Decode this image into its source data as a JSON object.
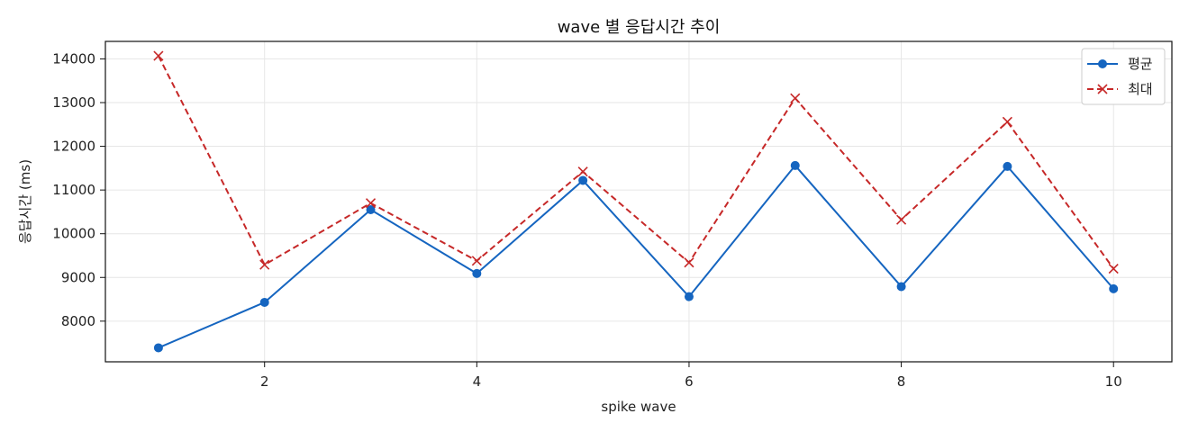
{
  "chart_data": {
    "type": "line",
    "title": "wave 별 응답시간 추이",
    "xlabel": "spike wave",
    "ylabel": "응답시간 (ms)",
    "x": [
      1,
      2,
      3,
      4,
      5,
      6,
      7,
      8,
      9,
      10
    ],
    "xlim": [
      0.5,
      10.55
    ],
    "ylim": [
      7070,
      14400
    ],
    "xticks": [
      2,
      4,
      6,
      8,
      10
    ],
    "yticks": [
      8000,
      9000,
      10000,
      11000,
      12000,
      13000,
      14000
    ],
    "grid": true,
    "legend_position": "top-right",
    "series": [
      {
        "name": "평균",
        "values": [
          7390,
          8430,
          10550,
          9090,
          11220,
          8560,
          11560,
          8790,
          11540,
          8740
        ],
        "color": "#1565c0",
        "line_style": "solid",
        "marker": "circle"
      },
      {
        "name": "최대",
        "values": [
          14070,
          9290,
          10700,
          9380,
          11420,
          9340,
          13100,
          10320,
          12560,
          9200
        ],
        "color": "#c62828",
        "line_style": "dashed",
        "marker": "x"
      }
    ]
  }
}
